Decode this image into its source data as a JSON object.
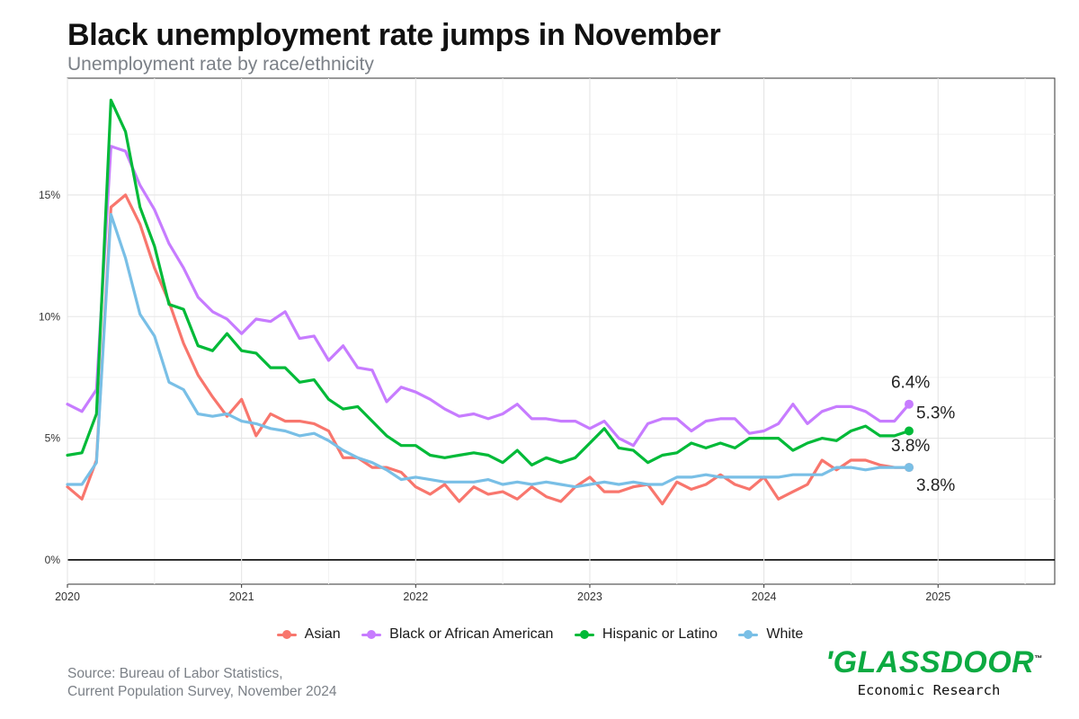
{
  "header": {
    "title": "Black unemployment rate jumps in November",
    "subtitle": "Unemployment rate by race/ethnicity"
  },
  "chart_data": {
    "type": "line",
    "title": "Black unemployment rate jumps in November",
    "subtitle": "Unemployment rate by race/ethnicity",
    "xlabel": "",
    "ylabel": "",
    "x_start": "2020-01",
    "x_end": "2024-11",
    "xlim": [
      2020.0,
      2025.67
    ],
    "ylim": [
      -1.0,
      19.8
    ],
    "x_ticks": [
      "2020",
      "2021",
      "2022",
      "2023",
      "2024",
      "2025"
    ],
    "y_ticks": [
      "0%",
      "5%",
      "10%",
      "15%"
    ],
    "y_tick_values": [
      0,
      5,
      10,
      15
    ],
    "grid": true,
    "legend_position": "bottom",
    "series": [
      {
        "name": "Asian",
        "color": "#f8766d",
        "end_label": "3.8%",
        "values": [
          3.0,
          2.5,
          4.1,
          14.5,
          15.0,
          13.8,
          12.0,
          10.6,
          8.9,
          7.6,
          6.7,
          5.9,
          6.6,
          5.1,
          6.0,
          5.7,
          5.7,
          5.6,
          5.3,
          4.2,
          4.2,
          3.8,
          3.8,
          3.6,
          3.0,
          2.7,
          3.1,
          2.4,
          3.0,
          2.7,
          2.8,
          2.5,
          3.0,
          2.6,
          2.4,
          3.0,
          3.4,
          2.8,
          2.8,
          3.0,
          3.1,
          2.3,
          3.2,
          2.9,
          3.1,
          3.5,
          3.1,
          2.9,
          3.4,
          2.5,
          2.8,
          3.1,
          4.1,
          3.7,
          4.1,
          4.1,
          3.9,
          3.8,
          3.8
        ]
      },
      {
        "name": "Black or African American",
        "color": "#c77cff",
        "end_label": "6.4%",
        "values": [
          6.4,
          6.1,
          7.0,
          17.0,
          16.8,
          15.4,
          14.4,
          13.0,
          12.0,
          10.8,
          10.2,
          9.9,
          9.3,
          9.9,
          9.8,
          10.2,
          9.1,
          9.2,
          8.2,
          8.8,
          7.9,
          7.8,
          6.5,
          7.1,
          6.9,
          6.6,
          6.2,
          5.9,
          6.0,
          5.8,
          6.0,
          6.4,
          5.8,
          5.8,
          5.7,
          5.7,
          5.4,
          5.7,
          5.0,
          4.7,
          5.6,
          5.8,
          5.8,
          5.3,
          5.7,
          5.8,
          5.8,
          5.2,
          5.3,
          5.6,
          6.4,
          5.6,
          6.1,
          6.3,
          6.3,
          6.1,
          5.7,
          5.7,
          6.4
        ]
      },
      {
        "name": "Hispanic or Latino",
        "color": "#00ba38",
        "end_label": "5.3%",
        "values": [
          4.3,
          4.4,
          6.0,
          18.9,
          17.6,
          14.5,
          12.9,
          10.5,
          10.3,
          8.8,
          8.6,
          9.3,
          8.6,
          8.5,
          7.9,
          7.9,
          7.3,
          7.4,
          6.6,
          6.2,
          6.3,
          5.7,
          5.1,
          4.7,
          4.7,
          4.3,
          4.2,
          4.3,
          4.4,
          4.3,
          4.0,
          4.5,
          3.9,
          4.2,
          4.0,
          4.2,
          4.8,
          5.4,
          4.6,
          4.5,
          4.0,
          4.3,
          4.4,
          4.8,
          4.6,
          4.8,
          4.6,
          5.0,
          5.0,
          5.0,
          4.5,
          4.8,
          5.0,
          4.9,
          5.3,
          5.5,
          5.1,
          5.1,
          5.3
        ]
      },
      {
        "name": "White",
        "color": "#79bfe6",
        "end_label": "3.8%",
        "values": [
          3.1,
          3.1,
          4.0,
          14.2,
          12.4,
          10.1,
          9.2,
          7.3,
          7.0,
          6.0,
          5.9,
          6.0,
          5.7,
          5.6,
          5.4,
          5.3,
          5.1,
          5.2,
          4.9,
          4.5,
          4.2,
          4.0,
          3.7,
          3.3,
          3.4,
          3.3,
          3.2,
          3.2,
          3.2,
          3.3,
          3.1,
          3.2,
          3.1,
          3.2,
          3.1,
          3.0,
          3.1,
          3.2,
          3.1,
          3.2,
          3.1,
          3.1,
          3.4,
          3.4,
          3.5,
          3.4,
          3.4,
          3.4,
          3.4,
          3.4,
          3.5,
          3.5,
          3.5,
          3.8,
          3.8,
          3.7,
          3.8,
          3.8,
          3.8
        ]
      }
    ],
    "legend": [
      "Asian",
      "Black or African American",
      "Hispanic or Latino",
      "White"
    ]
  },
  "footer": {
    "source_line1": "Source: Bureau of Labor Statistics,",
    "source_line2": "Current Population Survey, November 2024"
  },
  "brand": {
    "name": "'GLASSDOOR",
    "tm": "™",
    "subtitle": "Economic Research",
    "color": "#0caa41"
  }
}
